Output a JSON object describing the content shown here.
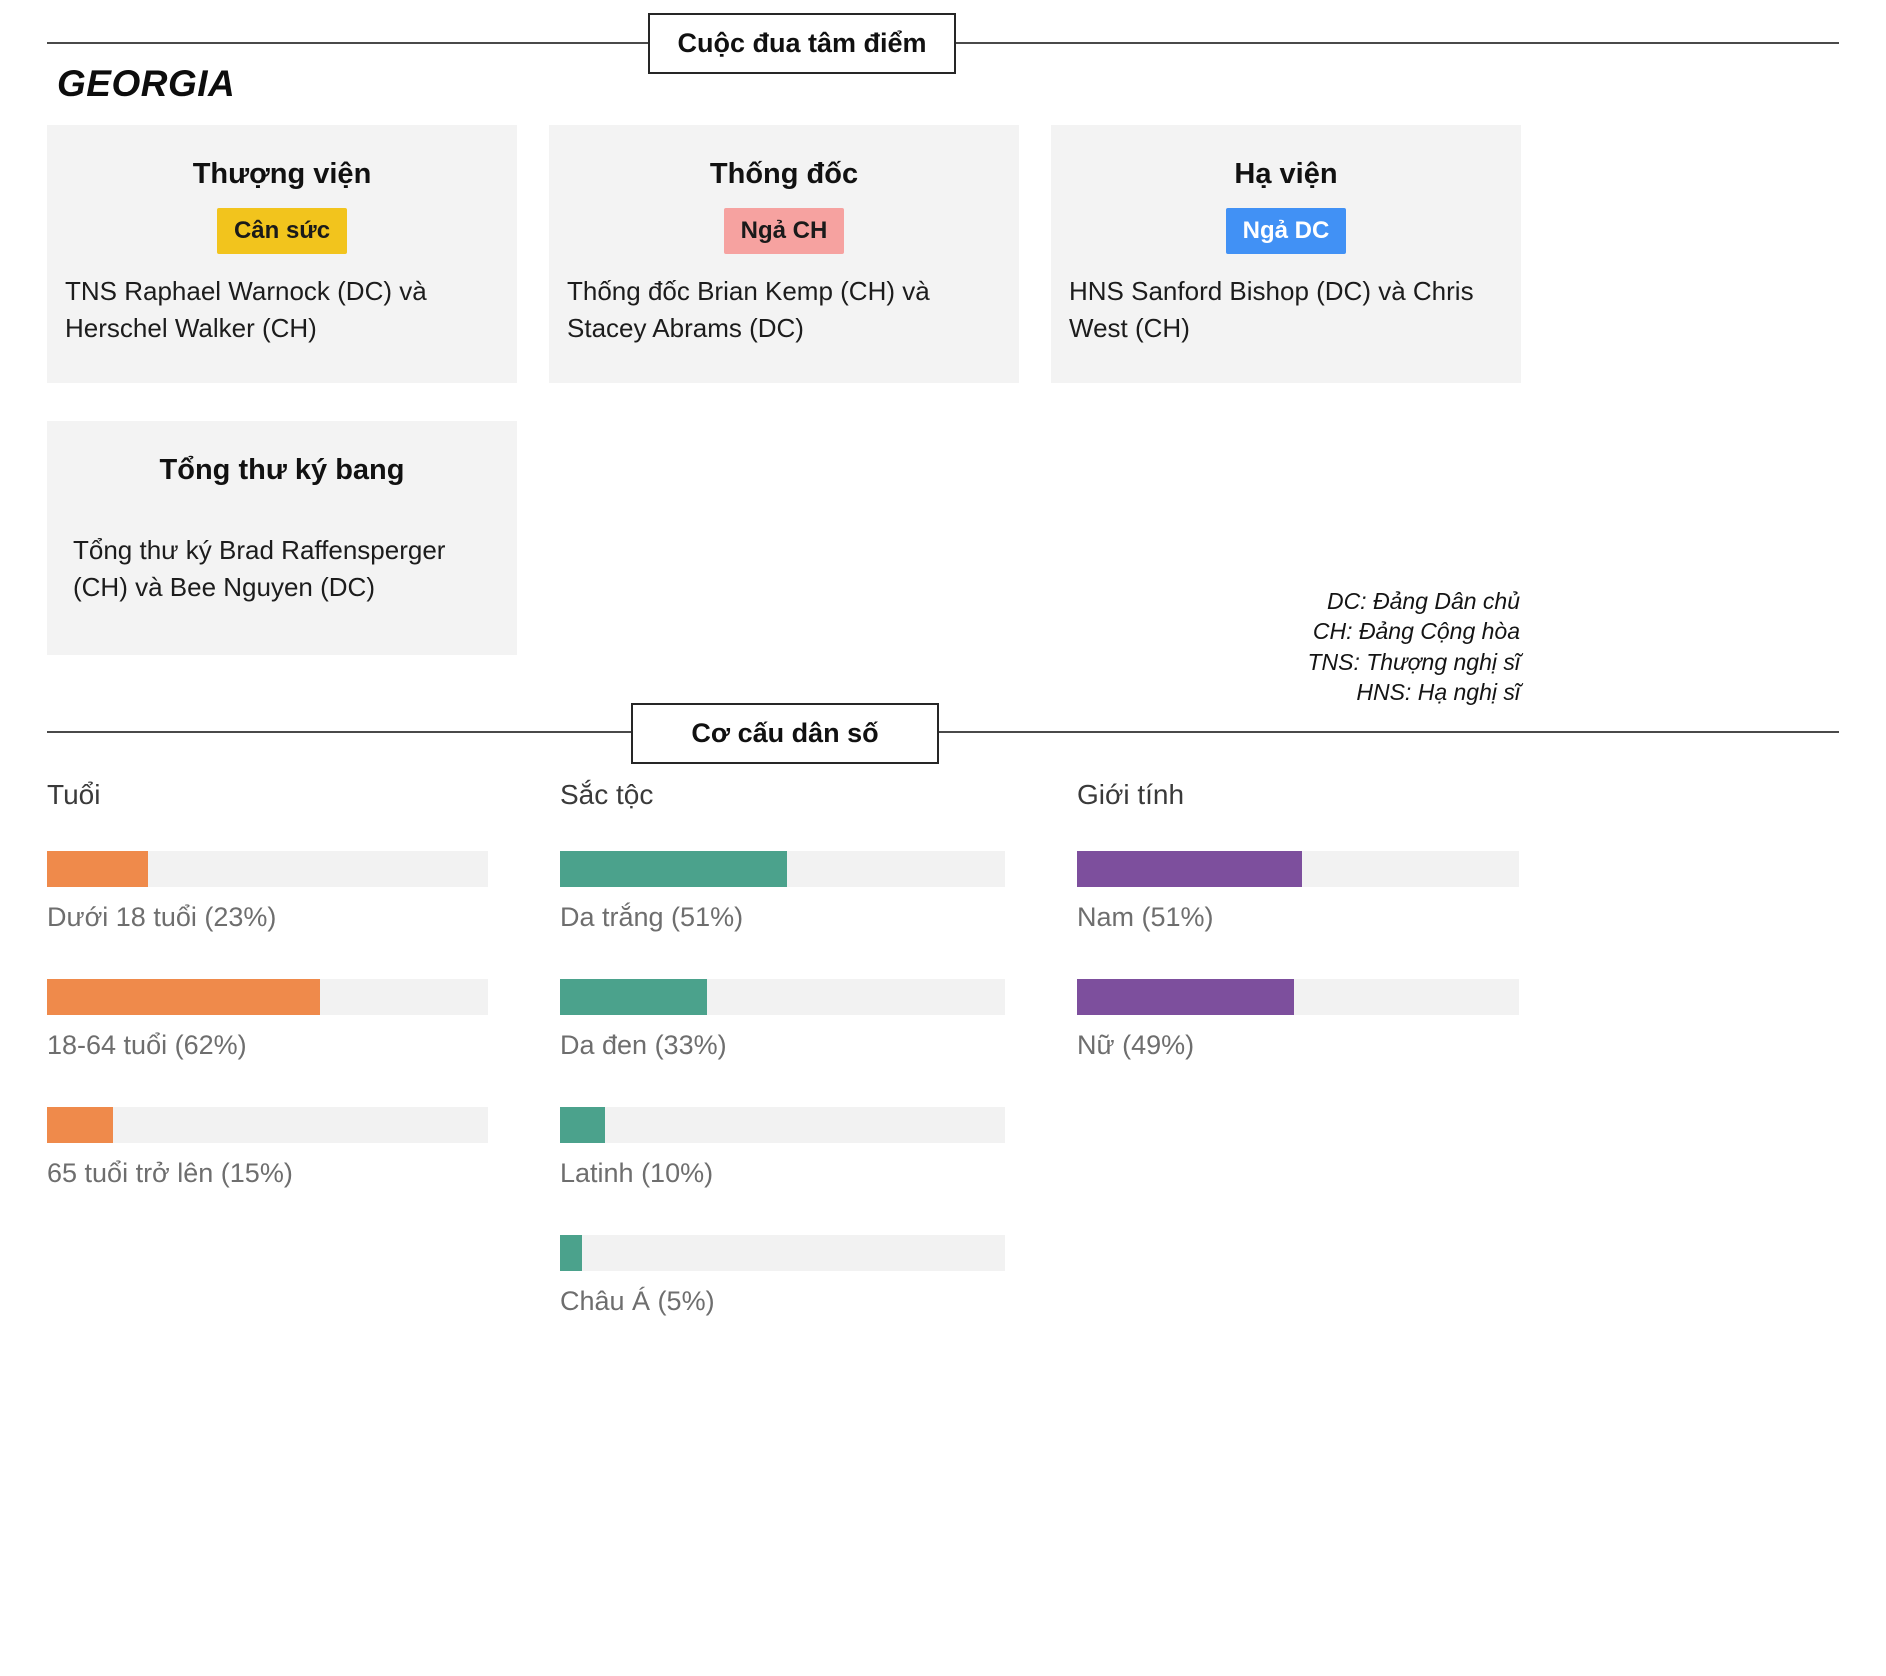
{
  "page": {
    "state_title": "GEORGIA"
  },
  "races": {
    "section_title": "Cuộc đua tâm điểm",
    "cards": [
      {
        "title": "Thượng viện",
        "badge": {
          "label": "Cân sức",
          "bg": "#f2c41d",
          "text_color": "#1a1a1a"
        },
        "description": "TNS Raphael Warnock (DC) và Herschel Walker (CH)"
      },
      {
        "title": "Thống đốc",
        "badge": {
          "label": "Ngả CH",
          "bg": "#f6a2a0",
          "text_color": "#1a1a1a"
        },
        "description": "Thống đốc Brian Kemp (CH) và Stacey Abrams (DC)"
      },
      {
        "title": "Hạ viện",
        "badge": {
          "label": "Ngả DC",
          "bg": "#4191f5",
          "text_color": "#ffffff"
        },
        "description": "HNS Sanford Bishop (DC) và Chris West (CH)"
      },
      {
        "title": "Tổng thư ký bang",
        "description": "Tổng thư ký Brad Raffensperger (CH) và Bee Nguyen (DC)"
      }
    ],
    "legend": [
      "DC: Đảng Dân chủ",
      "CH: Đảng Cộng hòa",
      "TNS: Thượng nghị sĩ",
      "HNS: Hạ nghị sĩ"
    ]
  },
  "demographics": {
    "section_title": "Cơ cấu dân số"
  },
  "chart_data": [
    {
      "type": "bar",
      "orientation": "horizontal",
      "title": "Tuổi",
      "categories": [
        "Dưới 18 tuổi",
        "18-64 tuổi",
        "65 tuổi trở lên"
      ],
      "values": [
        23,
        62,
        15
      ],
      "labels": [
        "Dưới 18 tuổi (23%)",
        "18-64 tuổi (62%)",
        "65 tuổi trở lên (15%)"
      ],
      "unit": "%",
      "xlim": [
        0,
        100
      ],
      "bar_color": "#ef8a4b",
      "track_color": "#f2f2f2"
    },
    {
      "type": "bar",
      "orientation": "horizontal",
      "title": "Sắc tộc",
      "categories": [
        "Da trắng",
        "Da đen",
        "Latinh",
        "Châu Á"
      ],
      "values": [
        51,
        33,
        10,
        5
      ],
      "labels": [
        "Da trắng (51%)",
        "Da đen (33%)",
        "Latinh (10%)",
        "Châu Á (5%)"
      ],
      "unit": "%",
      "xlim": [
        0,
        100
      ],
      "bar_color": "#4ba28c",
      "track_color": "#f2f2f2"
    },
    {
      "type": "bar",
      "orientation": "horizontal",
      "title": "Giới tính",
      "categories": [
        "Nam",
        "Nữ"
      ],
      "values": [
        51,
        49
      ],
      "labels": [
        "Nam (51%)",
        "Nữ (49%)"
      ],
      "unit": "%",
      "xlim": [
        0,
        100
      ],
      "bar_color": "#7d4f9d",
      "track_color": "#f2f2f2"
    }
  ]
}
